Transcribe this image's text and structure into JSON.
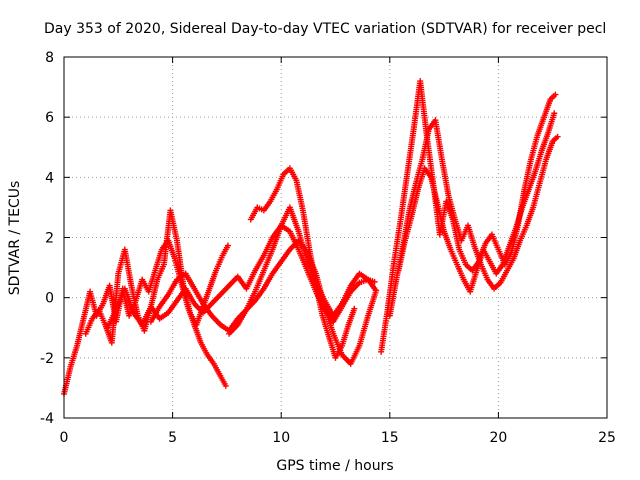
{
  "chart_data": {
    "type": "scatter",
    "title": "Day 353 of 2020, Sidereal Day-to-day VTEC variation (SDTVAR) for receiver pecl",
    "xlabel": "GPS time / hours",
    "ylabel": "SDTVAR / TECUs",
    "xlim": [
      0,
      25
    ],
    "ylim": [
      -4,
      8
    ],
    "x_ticks": [
      0,
      5,
      10,
      15,
      20,
      25
    ],
    "y_ticks": [
      -4,
      -2,
      0,
      2,
      4,
      6,
      8
    ],
    "x_tick_labels": [
      "0",
      "5",
      "10",
      "15",
      "20",
      "25"
    ],
    "y_tick_labels": [
      "-4",
      "-2",
      "0",
      "2",
      "4",
      "6",
      "8"
    ],
    "grid": true,
    "marker": "+",
    "color": "#ff0000",
    "series": [
      {
        "name": "trace-1",
        "x": [
          0.0,
          0.3,
          0.6,
          0.9,
          1.2,
          1.5,
          1.8,
          2.1,
          2.4,
          2.7,
          3.0,
          3.3,
          3.6,
          3.9,
          4.2,
          4.5,
          4.8,
          5.1,
          5.4,
          5.7,
          6.0,
          6.3,
          6.6,
          6.9,
          7.2,
          7.5
        ],
        "y": [
          -3.2,
          -2.3,
          -1.6,
          -0.7,
          0.2,
          -0.6,
          -0.2,
          0.4,
          -0.8,
          0.3,
          -0.6,
          -0.1,
          0.6,
          0.2,
          0.9,
          1.6,
          1.9,
          1.3,
          0.5,
          -0.3,
          -0.9,
          -1.5,
          -1.9,
          -2.2,
          -2.6,
          -3.0
        ]
      },
      {
        "name": "trace-2",
        "x": [
          1.0,
          1.3,
          1.6,
          1.9,
          2.2,
          2.5,
          2.8,
          3.1,
          3.4,
          3.7,
          4.0,
          4.3,
          4.6,
          4.9,
          5.2,
          5.5,
          5.8,
          6.1,
          6.4,
          6.7,
          7.0,
          7.3,
          7.6
        ],
        "y": [
          -1.2,
          -0.7,
          -0.4,
          -0.9,
          -1.5,
          0.8,
          1.6,
          0.4,
          -0.6,
          -1.1,
          -0.3,
          0.6,
          1.1,
          2.9,
          1.9,
          0.4,
          -0.5,
          -0.9,
          -0.3,
          0.3,
          0.9,
          1.4,
          1.8
        ]
      },
      {
        "name": "trace-3",
        "x": [
          2.0,
          2.4,
          2.8,
          3.2,
          3.6,
          4.0,
          4.4,
          4.8,
          5.2,
          5.6,
          6.0,
          6.4,
          6.8,
          7.2,
          7.6,
          8.0,
          8.4,
          8.8,
          9.2,
          9.6,
          10.0,
          10.4,
          10.8,
          11.2,
          11.6,
          12.0,
          12.4,
          12.8,
          13.2,
          13.6,
          14.0,
          14.4
        ],
        "y": [
          -1.0,
          -0.4,
          0.3,
          -0.5,
          -0.9,
          -0.3,
          -0.7,
          -0.5,
          -0.1,
          0.3,
          -0.2,
          -0.5,
          -0.2,
          0.1,
          0.4,
          0.7,
          0.3,
          0.9,
          1.4,
          2.0,
          2.4,
          2.2,
          1.6,
          0.9,
          0.2,
          -0.4,
          -0.8,
          -0.3,
          0.2,
          0.5,
          0.6,
          0.5
        ]
      },
      {
        "name": "trace-4",
        "x": [
          4.0,
          4.4,
          4.8,
          5.2,
          5.6,
          6.0,
          6.4,
          6.8,
          7.2,
          7.6,
          8.0,
          8.4,
          8.8,
          9.2,
          9.6,
          10.0,
          10.4,
          10.8,
          11.2,
          11.6,
          12.0,
          12.4,
          12.8,
          13.2,
          13.6,
          14.0,
          14.4
        ],
        "y": [
          -0.8,
          -0.3,
          0.1,
          0.6,
          0.8,
          0.3,
          -0.2,
          -0.6,
          -0.9,
          -1.1,
          -0.7,
          -0.4,
          -0.1,
          0.3,
          0.8,
          1.2,
          1.6,
          1.9,
          1.5,
          0.8,
          -0.3,
          -1.2,
          -1.9,
          -2.2,
          -1.6,
          -0.6,
          0.3
        ]
      },
      {
        "name": "trace-5",
        "x": [
          7.6,
          8.0,
          8.4,
          8.8,
          9.2,
          9.6,
          10.0,
          10.4,
          10.8,
          11.2,
          11.6,
          12.0,
          12.4,
          12.8,
          13.2,
          13.6,
          14.0,
          14.4
        ],
        "y": [
          -1.2,
          -0.9,
          -0.4,
          0.2,
          0.9,
          1.6,
          2.4,
          3.0,
          2.2,
          1.2,
          0.5,
          -0.1,
          -0.6,
          -0.2,
          0.4,
          0.8,
          0.6,
          0.2
        ]
      },
      {
        "name": "trace-6",
        "x": [
          8.6,
          8.9,
          9.2,
          9.5,
          9.8,
          10.1,
          10.4,
          10.7,
          11.0,
          11.3,
          11.6,
          11.9,
          12.2,
          12.5,
          12.8,
          13.1,
          13.4
        ],
        "y": [
          2.6,
          3.0,
          2.9,
          3.2,
          3.6,
          4.1,
          4.3,
          3.9,
          2.9,
          1.6,
          0.4,
          -0.6,
          -1.3,
          -2.0,
          -1.6,
          -0.9,
          -0.3
        ]
      },
      {
        "name": "trace-7",
        "x": [
          14.6,
          14.9,
          15.2,
          15.5,
          15.8,
          16.1,
          16.4,
          16.7,
          17.0,
          17.3,
          17.6,
          17.9,
          18.2,
          18.5,
          18.8,
          19.1,
          19.4,
          19.7,
          20.0,
          20.3,
          20.6,
          20.9,
          21.2,
          21.5,
          21.8,
          22.1,
          22.4,
          22.7
        ],
        "y": [
          -1.8,
          -0.4,
          1.2,
          2.6,
          4.1,
          5.6,
          7.2,
          5.4,
          3.8,
          2.1,
          3.2,
          2.6,
          1.6,
          1.1,
          0.9,
          1.2,
          1.8,
          2.1,
          1.6,
          1.1,
          1.5,
          2.4,
          3.6,
          4.6,
          5.4,
          6.0,
          6.6,
          6.8
        ]
      },
      {
        "name": "trace-8",
        "x": [
          15.0,
          15.3,
          15.6,
          15.9,
          16.2,
          16.5,
          16.8,
          17.1,
          17.4,
          17.7,
          18.0,
          18.3,
          18.6,
          18.9,
          19.2,
          19.5,
          19.8,
          20.1,
          20.4,
          20.7,
          21.0,
          21.3,
          21.6,
          21.9,
          22.2,
          22.5,
          22.8
        ],
        "y": [
          -0.6,
          0.6,
          1.7,
          2.9,
          3.8,
          4.6,
          5.6,
          5.9,
          4.6,
          3.4,
          2.6,
          1.9,
          2.4,
          1.7,
          1.1,
          0.6,
          0.3,
          0.5,
          0.9,
          1.3,
          1.9,
          2.4,
          3.0,
          3.8,
          4.6,
          5.2,
          5.4
        ]
      },
      {
        "name": "trace-9",
        "x": [
          15.4,
          15.7,
          16.0,
          16.3,
          16.6,
          16.9,
          17.2,
          17.5,
          17.8,
          18.1,
          18.4,
          18.7,
          19.0,
          19.3,
          19.6,
          19.9,
          20.2,
          20.5,
          20.8,
          21.1,
          21.4,
          21.7,
          22.0,
          22.3,
          22.6
        ],
        "y": [
          0.9,
          1.9,
          2.7,
          3.6,
          4.3,
          4.0,
          3.1,
          2.2,
          1.6,
          1.1,
          0.6,
          0.2,
          0.9,
          1.6,
          1.2,
          0.8,
          1.1,
          1.7,
          2.3,
          3.0,
          3.6,
          4.2,
          4.9,
          5.5,
          6.2
        ]
      }
    ]
  }
}
